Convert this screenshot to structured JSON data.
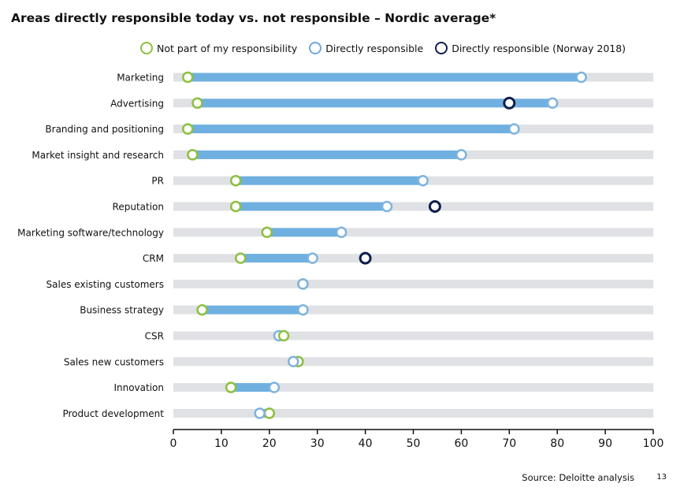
{
  "title": "Areas directly responsible today vs. not responsible – Nordic average*",
  "legend": {
    "items": [
      {
        "label": "Not part of my responsibility",
        "color": "#8dbf3f"
      },
      {
        "label": "Directly responsible",
        "color": "#6fa8dc"
      },
      {
        "label": "Directly responsible (Norway 2018)",
        "color": "#0f1f4b"
      }
    ]
  },
  "footer": {
    "source": "Source: Deloitte analysis",
    "page": "13"
  },
  "colors": {
    "track": "#e0e1e4",
    "bar": "#6fb0e0",
    "not_responsible": "#8dbf3f",
    "directly": "#7fb3dd",
    "norway": "#0f1f4b",
    "fill": "#ffffff"
  },
  "chart_data": {
    "type": "dumbbell",
    "title": "Areas directly responsible today vs. not responsible – Nordic average*",
    "categories": [
      "Marketing",
      "Advertising",
      "Branding and positioning",
      "Market insight and research",
      "PR",
      "Reputation",
      "Marketing software/technology",
      "CRM",
      "Sales existing customers",
      "Business strategy",
      "CSR",
      "Sales new customers",
      "Innovation",
      "Product development"
    ],
    "series": [
      {
        "name": "Not part of my responsibility",
        "values": [
          3,
          5,
          3,
          4,
          13,
          13,
          19.5,
          14,
          27,
          6,
          23,
          26,
          12,
          20
        ]
      },
      {
        "name": "Directly responsible",
        "values": [
          85,
          79,
          71,
          60,
          52,
          44.5,
          35,
          29,
          27,
          27,
          22,
          25,
          21,
          18
        ]
      },
      {
        "name": "Directly responsible (Norway 2018)",
        "values": [
          null,
          70,
          null,
          null,
          null,
          54.5,
          null,
          40,
          null,
          null,
          null,
          null,
          null,
          null
        ]
      }
    ],
    "xlim": [
      0,
      100
    ],
    "xticks": [
      0,
      10,
      20,
      30,
      40,
      50,
      60,
      70,
      80,
      90,
      100
    ],
    "xlabel": "",
    "ylabel": "",
    "grid": false
  }
}
